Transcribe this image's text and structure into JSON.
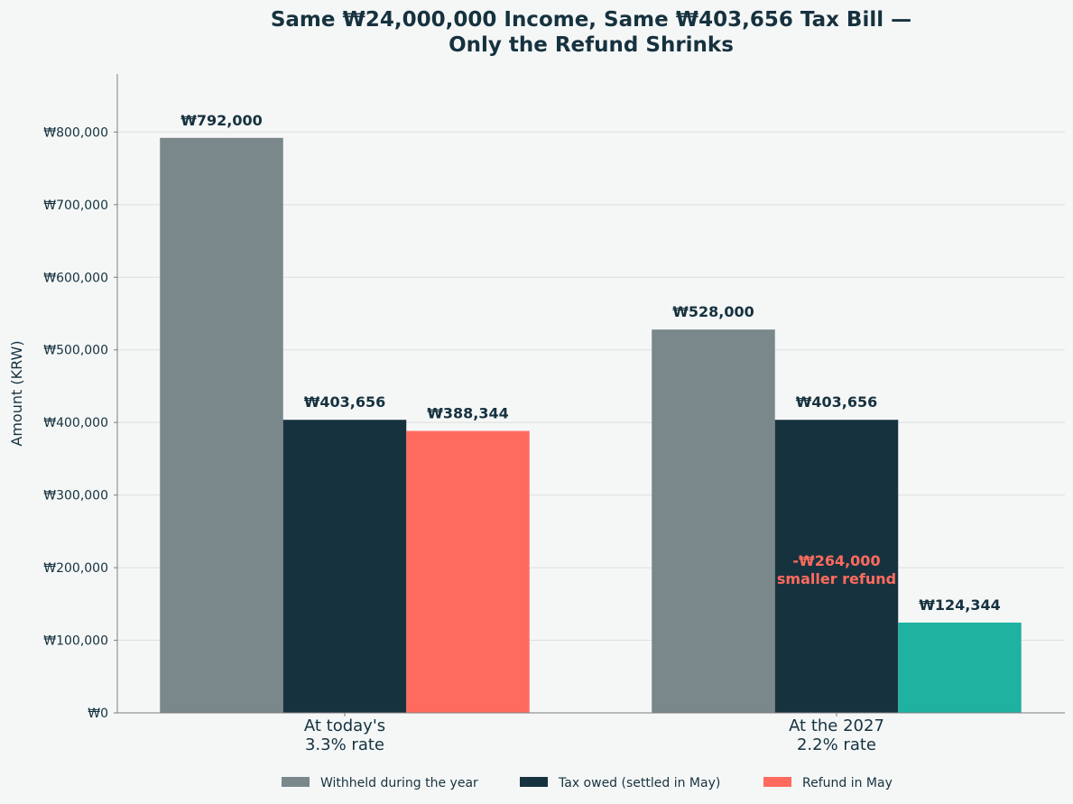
{
  "chart_data": {
    "type": "bar",
    "title_lines": [
      "Same ₩24,000,000 Income, Same ₩403,656 Tax Bill —",
      "Only the Refund Shrinks"
    ],
    "ylabel": "Amount (KRW)",
    "xlabel": "",
    "ylim": [
      0,
      880000
    ],
    "yticks": [
      0,
      100000,
      200000,
      300000,
      400000,
      500000,
      600000,
      700000,
      800000
    ],
    "ytick_labels": [
      "₩0",
      "₩100,000",
      "₩200,000",
      "₩300,000",
      "₩400,000",
      "₩500,000",
      "₩600,000",
      "₩700,000",
      "₩800,000"
    ],
    "grid": "horizontal",
    "legend_position": "bottom-center",
    "categories": [
      [
        "At today's",
        "3.3% rate"
      ],
      [
        "At the 2027",
        "2.2% rate"
      ]
    ],
    "series": [
      {
        "name": "Withheld during the year",
        "color": "#7a878b",
        "values": [
          792000,
          528000
        ],
        "labels": [
          "₩792,000",
          "₩528,000"
        ],
        "point_colors": [
          "#7a878b",
          "#7a878b"
        ]
      },
      {
        "name": "Tax owed (settled in May)",
        "color": "#17323f",
        "values": [
          403656,
          403656
        ],
        "labels": [
          "₩403,656",
          "₩403,656"
        ],
        "point_colors": [
          "#17323f",
          "#17323f"
        ]
      },
      {
        "name": "Refund in May",
        "color": "#ff6b5e",
        "values": [
          388344,
          124344
        ],
        "labels": [
          "₩388,344",
          "₩124,344"
        ],
        "point_colors": [
          "#ff6b5e",
          "#20b2a1"
        ]
      }
    ],
    "annotation": {
      "lines": [
        "-₩264,000",
        "smaller refund"
      ],
      "color": "#ff6b5e",
      "category_index": 1,
      "series_index": 1,
      "y_value": 210000
    }
  }
}
